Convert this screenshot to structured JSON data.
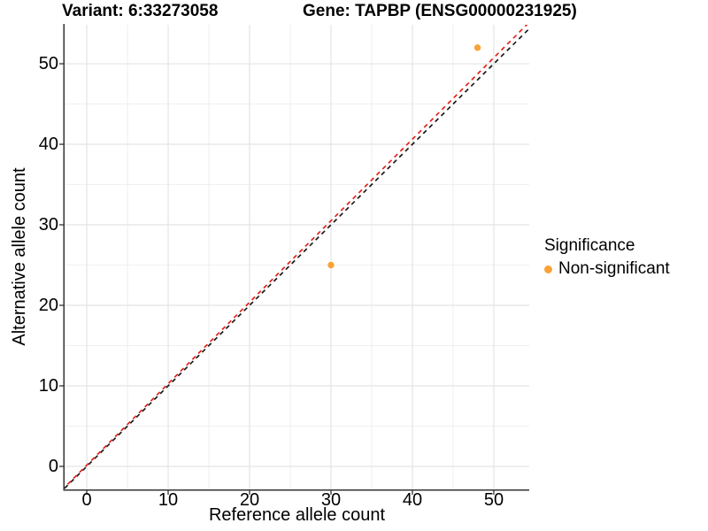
{
  "chart_data": {
    "type": "scatter",
    "title_left": "Variant: 6:33273058",
    "title_right": "Gene: TAPBP (ENSG00000231925)",
    "xlabel": "Reference allele count",
    "ylabel": "Alternative allele count",
    "x_ticks": [
      0,
      10,
      20,
      30,
      40,
      50
    ],
    "y_ticks": [
      0,
      10,
      20,
      30,
      40,
      50
    ],
    "x_minor_ticks": [
      5,
      15,
      25,
      35,
      45
    ],
    "y_minor_ticks": [
      5,
      15,
      25,
      35,
      45
    ],
    "xlim": [
      -2.72,
      54.35
    ],
    "ylim": [
      -2.86,
      54.84
    ],
    "grid": true,
    "series": [
      {
        "name": "Non-significant",
        "marker": "circle",
        "color": "#F9A338",
        "points": [
          [
            30,
            25
          ],
          [
            48,
            52
          ]
        ]
      }
    ],
    "reference_lines": [
      {
        "name": "identity",
        "style": "dashed",
        "color": "#1a1a1a",
        "slope": 1,
        "intercept": 0
      },
      {
        "name": "fit",
        "style": "dashed",
        "color": "#E2231A",
        "slope": 1.012,
        "intercept": 0.15
      }
    ],
    "legend": {
      "title": "Significance",
      "position": "right",
      "items": [
        {
          "label": "Non-significant",
          "color": "#F9A338"
        }
      ]
    },
    "colors": {
      "grid_major": "#e4e4e4",
      "grid_minor": "#ebebeb",
      "axis": "#333333",
      "text": "#000000"
    }
  }
}
